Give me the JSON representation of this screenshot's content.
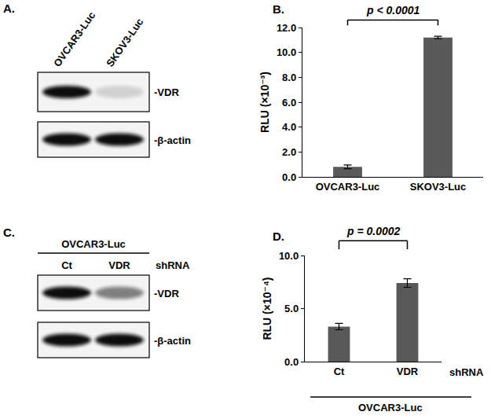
{
  "chart_data": [
    {
      "type": "bar",
      "title": "B.",
      "categories": [
        "OVCAR3-Luc",
        "SKOV3-Luc"
      ],
      "values": [
        0.8,
        11.2
      ],
      "error": [
        0.15,
        0.1
      ],
      "color": "#595959",
      "ylabel": "RLU (×10⁻³)",
      "ylim": [
        0,
        12
      ],
      "yticks": [
        {
          "value": 0,
          "label": "0.0"
        },
        {
          "value": 2,
          "label": "2.0"
        },
        {
          "value": 4,
          "label": "4.0"
        },
        {
          "value": 6,
          "label": "6.0"
        },
        {
          "value": 8,
          "label": "8.0"
        },
        {
          "value": 10,
          "label": "10.0"
        },
        {
          "value": 12,
          "label": "12.0"
        }
      ],
      "annotations": [
        "p < 0.0001"
      ]
    },
    {
      "type": "bar",
      "title": "D.",
      "categories": [
        "Ct",
        "VDR"
      ],
      "values": [
        3.3,
        7.4
      ],
      "error": [
        0.3,
        0.4
      ],
      "color": "#595959",
      "ylabel": "RLU (×10⁻⁴)",
      "ylim": [
        0,
        10
      ],
      "yticks": [
        {
          "value": 0,
          "label": "0.0"
        },
        {
          "value": 5,
          "label": "5.0"
        },
        {
          "value": 10,
          "label": "10.0"
        }
      ],
      "xlabel": "shRNA",
      "group": "OVCAR3-Luc",
      "annotations": [
        "p = 0.0002"
      ]
    }
  ],
  "blots": [
    {
      "label": "A.",
      "lanes": [
        "OVCAR3-Luc",
        "SKOV3-Luc"
      ],
      "rows": [
        {
          "label": "-VDR",
          "intensity": [
            1,
            0.15
          ]
        },
        {
          "label": "-β-actin",
          "intensity": [
            1,
            1
          ]
        }
      ]
    },
    {
      "label": "C.",
      "header": "OVCAR3-Luc",
      "lanes": [
        "Ct",
        "VDR"
      ],
      "lane_title": "shRNA",
      "rows": [
        {
          "label": "-VDR",
          "intensity": [
            1,
            0.5
          ]
        },
        {
          "label": "-β-actin",
          "intensity": [
            1,
            1
          ]
        }
      ]
    }
  ]
}
